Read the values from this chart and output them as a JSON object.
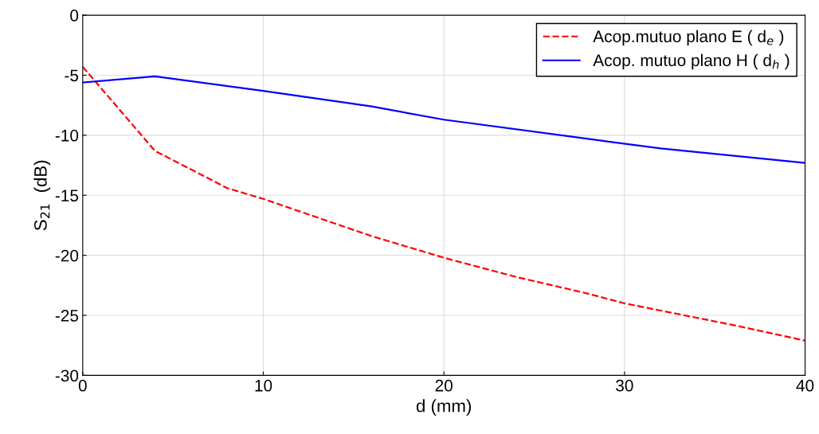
{
  "chart_data": {
    "type": "line",
    "xlabel": "d (mm)",
    "ylabel": "S$_{21}$  (dB)",
    "xlim": [
      0,
      40
    ],
    "ylim": [
      -30,
      0
    ],
    "xticks": [
      0,
      10,
      20,
      30,
      40
    ],
    "yticks": [
      -30,
      -25,
      -20,
      -15,
      -10,
      -5,
      0
    ],
    "grid": true,
    "legend": "top right",
    "marker": "none",
    "series": [
      {
        "name": "Acop.mutuo plano E ( d$_{e}$ )",
        "color": "#ff0000",
        "line_style": "dashed",
        "x": [
          0,
          4,
          8,
          10,
          16,
          20,
          24,
          28,
          30,
          32,
          36,
          40
        ],
        "values": [
          -4.3,
          -11.3,
          -14.4,
          -15.3,
          -18.4,
          -20.2,
          -21.8,
          -23.2,
          -24.0,
          -24.6,
          -25.8,
          -27.1
        ]
      },
      {
        "name": "Acop. mutuo plano H ( d$_{h}$ )",
        "color": "#0000ff",
        "line_style": "solid",
        "x": [
          0,
          4,
          10,
          16,
          20,
          28,
          32,
          40
        ],
        "values": [
          -5.6,
          -5.1,
          -6.3,
          -7.6,
          -8.7,
          -10.3,
          -11.1,
          -12.3
        ]
      }
    ]
  }
}
